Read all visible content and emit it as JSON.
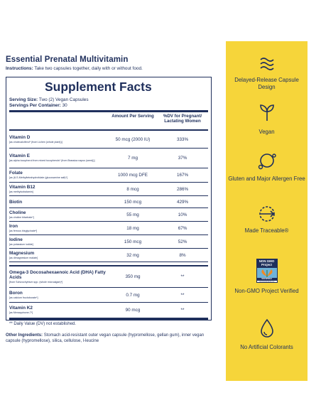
{
  "product_title": "Essential Prenatal Multivitamin",
  "instructions": {
    "label": "Instructions:",
    "text": "Take two capsules together, daily with or without food."
  },
  "supplement_facts": {
    "title": "Supplement Facts",
    "serving_size_label": "Serving Size:",
    "serving_size_value": "Two (2) Vegan Capsules",
    "servings_per_container_label": "Servings Per Container:",
    "servings_per_container_value": "30",
    "col_amount": "Amount Per Serving",
    "col_dv": "%DV for Pregnant/ Lactating Women",
    "nutrients": [
      {
        "name": "Vitamin D",
        "sub": "[as cholecalciferol* (from Lichen (whole plant))]",
        "amount": "50 mcg (2000 IU)",
        "dv": "333%"
      },
      {
        "name": "Vitamin E",
        "sub": "[as alpha tocopherol from mixed tocopherols* (from Brassica napus (seed))]",
        "amount": "7 mg",
        "dv": "37%"
      },
      {
        "name": "Folate",
        "sub": "[as (6-S-Methyltetrahydrofolate (glucosamine salt)*]",
        "amount": "1000 mcg DFE",
        "dv": "167%"
      },
      {
        "name": "Vitamin B12",
        "sub": "[as methylcobalamin]",
        "amount": "8 mcg",
        "dv": "286%"
      },
      {
        "name": "Biotin",
        "sub": "",
        "amount": "150 mcg",
        "dv": "429%"
      },
      {
        "name": "Choline",
        "sub": "[as choline bitartrate*]",
        "amount": "55 mg",
        "dv": "10%"
      },
      {
        "name": "Iron",
        "sub": "[as ferrous bisglycinate*]",
        "amount": "18 mg",
        "dv": "67%"
      },
      {
        "name": "Iodine",
        "sub": "[as potassium iodide]",
        "amount": "150 mcg",
        "dv": "52%"
      },
      {
        "name": "Magnesium",
        "sub": "[as dimagnesium malate]",
        "amount": "32 mg",
        "dv": "8%"
      }
    ],
    "other_nutrients": [
      {
        "name": "Omega-3 Docosahexaenoic Acid (DHA) Fatty Acids",
        "sub": "[from Schizochytrium spp. (whole microalgae)*]",
        "amount": "350 mg",
        "dv": "**"
      },
      {
        "name": "Boron",
        "sub": "[as calcium fructoborate*]",
        "amount": "0.7 mg",
        "dv": "**"
      },
      {
        "name": "Vitamin K2",
        "sub": "[as Menaquinone-7*]",
        "amount": "90 mcg",
        "dv": "**"
      }
    ],
    "dv_note": "** Daily Value (DV) not established."
  },
  "other_ingredients": {
    "label": "Other Ingredients:",
    "text": "Stomach acid-resistant outer vegan capsule (hypromellose, gellan gum), inner vegan capsule (hypromellose), silica, cellulose, l-leucine"
  },
  "features": [
    {
      "icon": "waves-icon",
      "label": "Delayed-Release Capsule Design"
    },
    {
      "icon": "sprout-icon",
      "label": "Vegan"
    },
    {
      "icon": "molecule-icon",
      "label": "Gluten and Major Allergen Free"
    },
    {
      "icon": "traceable-icon",
      "label": "Made Traceable®"
    },
    {
      "icon": "non-gmo-badge",
      "label": "Non-GMO Project Verified",
      "badge_top": "NON GMO Project",
      "badge_bottom": "VERIFIED",
      "badge_url": "nongmoproject.org"
    },
    {
      "icon": "drop-icon",
      "label": "No Artificial Colorants"
    }
  ],
  "colors": {
    "navy": "#1f2f5c",
    "yellow": "#f6d53a"
  }
}
